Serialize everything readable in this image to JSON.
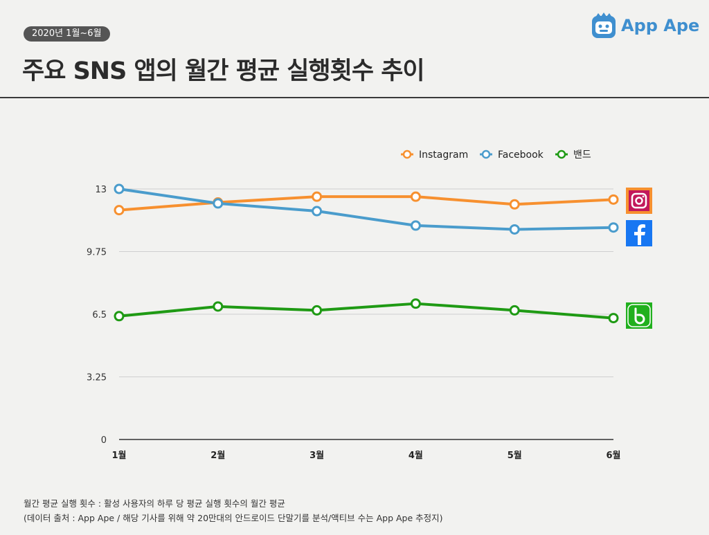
{
  "header": {
    "period": "2020년 1월~6월",
    "title": "주요 SNS 앱의 월간 평균 실행횟수 추이",
    "brand": "App Ape"
  },
  "footnotes": [
    "월간 평균 실행 횟수 : 활성 사용자의 하루 당 평균 실행 횟수의 월간 평균",
    "(데이터 출처 : App Ape / 해당 기사를 위해 약 20만대의 안드로이드 단말기를 분석/액티브 수는 App Ape 추정지)"
  ],
  "colors": {
    "instagram": "#f7902f",
    "facebook": "#4a9ccc",
    "band": "#1f9a14",
    "grid": "#cfcfcf",
    "axis": "#333333",
    "brand": "#3f8fcf"
  },
  "icons": [
    "instagram-icon",
    "facebook-icon",
    "band-icon"
  ],
  "chart_data": {
    "type": "line",
    "categories": [
      "1월",
      "2월",
      "3월",
      "4월",
      "5월",
      "6월"
    ],
    "yticks": [
      "0",
      "3.25",
      "6.5",
      "9.75",
      "13"
    ],
    "ylim": [
      0,
      13
    ],
    "grid": true,
    "legend_position": "top-right",
    "series": [
      {
        "name": "Instagram",
        "key": "instagram",
        "values": [
          11.9,
          12.3,
          12.6,
          12.6,
          12.2,
          12.45
        ]
      },
      {
        "name": "Facebook",
        "key": "facebook",
        "values": [
          13.0,
          12.25,
          11.85,
          11.1,
          10.9,
          11.0
        ]
      },
      {
        "name": "밴드",
        "key": "band",
        "values": [
          6.4,
          6.9,
          6.7,
          7.05,
          6.7,
          6.3
        ]
      }
    ]
  }
}
